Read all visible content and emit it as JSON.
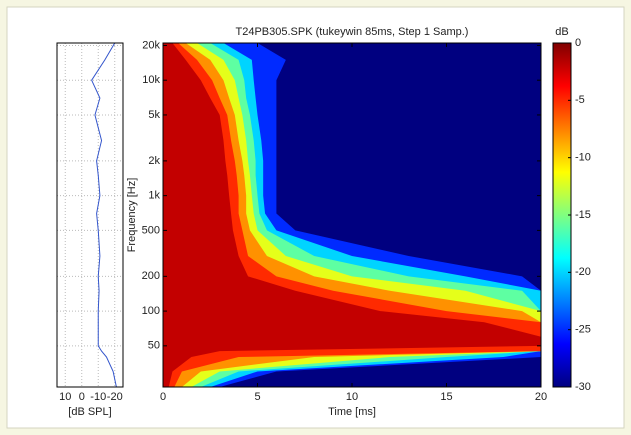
{
  "chart_data": {
    "type": "spectrogram",
    "title": "T24PB305.SPK (tukeywin 85ms, Step 1 Samp.)",
    "x_label": "Time [ms]",
    "y_label": "Frequency [Hz]",
    "xlim": [
      0,
      20
    ],
    "xticks": [
      0,
      5,
      10,
      15,
      20
    ],
    "ylim": [
      22,
      21000
    ],
    "y_scale": "log",
    "yticks": [
      50,
      100,
      200,
      500,
      {
        "value": 1000,
        "label": "1k"
      },
      {
        "value": 2000,
        "label": "2k"
      },
      {
        "value": 5000,
        "label": "5k"
      },
      {
        "value": 10000,
        "label": "10k"
      },
      {
        "value": 20000,
        "label": "20k"
      }
    ],
    "colorbar": {
      "title": "dB",
      "colormap": "jet",
      "clim": [
        -30,
        0
      ],
      "ticks": [
        0,
        -5,
        -10,
        -15,
        -20,
        -25,
        -30
      ]
    },
    "frequencies": [
      22,
      30,
      40,
      45,
      50,
      60,
      80,
      100,
      150,
      200,
      300,
      500,
      700,
      1000,
      1500,
      2000,
      3000,
      5000,
      7000,
      10000,
      15000,
      21000
    ],
    "contours": [
      {
        "level": -25,
        "times": [
          3,
          6,
          20,
          20,
          20,
          20,
          20,
          20,
          20,
          19,
          13,
          7,
          6,
          6,
          6,
          6,
          6,
          6,
          6,
          6,
          6.5,
          5
        ]
      },
      {
        "level": -20,
        "times": [
          2.5,
          5,
          18,
          20,
          20,
          20,
          20,
          20,
          20,
          16,
          10,
          6,
          5.4,
          5.3,
          5.3,
          5.3,
          5.2,
          5,
          4.9,
          4.8,
          4.7,
          3.2
        ]
      },
      {
        "level": -16,
        "times": [
          2,
          4,
          15,
          20,
          20,
          20,
          20,
          20,
          19,
          13,
          8,
          5.5,
          5.1,
          5,
          4.9,
          4.9,
          4.8,
          4.6,
          4.4,
          4.3,
          4,
          2.5
        ]
      },
      {
        "level": -12,
        "times": [
          1.5,
          3,
          12,
          20,
          20,
          20,
          20,
          20,
          16,
          10,
          6.5,
          5,
          4.8,
          4.7,
          4.6,
          4.5,
          4.4,
          4.2,
          4,
          3.8,
          3.2,
          1.8
        ]
      },
      {
        "level": -8,
        "times": [
          1,
          2,
          8,
          20,
          20,
          20,
          20,
          19,
          12,
          8,
          5.5,
          4.6,
          4.4,
          4.4,
          4.3,
          4.2,
          4,
          3.8,
          3.5,
          3.2,
          2.5,
          1.2
        ]
      },
      {
        "level": -5,
        "times": [
          0.6,
          1,
          4,
          20,
          20,
          20,
          20,
          15,
          9,
          6,
          4.5,
          4.2,
          4,
          4,
          3.9,
          3.8,
          3.6,
          3.4,
          3,
          2.6,
          1.8,
          0.8
        ]
      },
      {
        "level": -2,
        "times": [
          0.3,
          0.5,
          1.5,
          3,
          20,
          20,
          17,
          11.5,
          7,
          4.5,
          4,
          3.7,
          3.6,
          3.5,
          3.4,
          3.3,
          3.2,
          3,
          2.5,
          2,
          1.2,
          0.5
        ]
      }
    ],
    "response": {
      "x_label": "[dB SPL]",
      "xlim": [
        15,
        -25
      ],
      "xticks": [
        10,
        0,
        -10,
        -20
      ],
      "color": "#3355cc",
      "values": [
        -21,
        -19,
        -15,
        -12,
        -10,
        -10,
        -10,
        -10,
        -10.5,
        -10,
        -11,
        -10,
        -9,
        -11,
        -10,
        -9,
        -12,
        -8,
        -11,
        -6,
        -14,
        -20
      ]
    }
  }
}
